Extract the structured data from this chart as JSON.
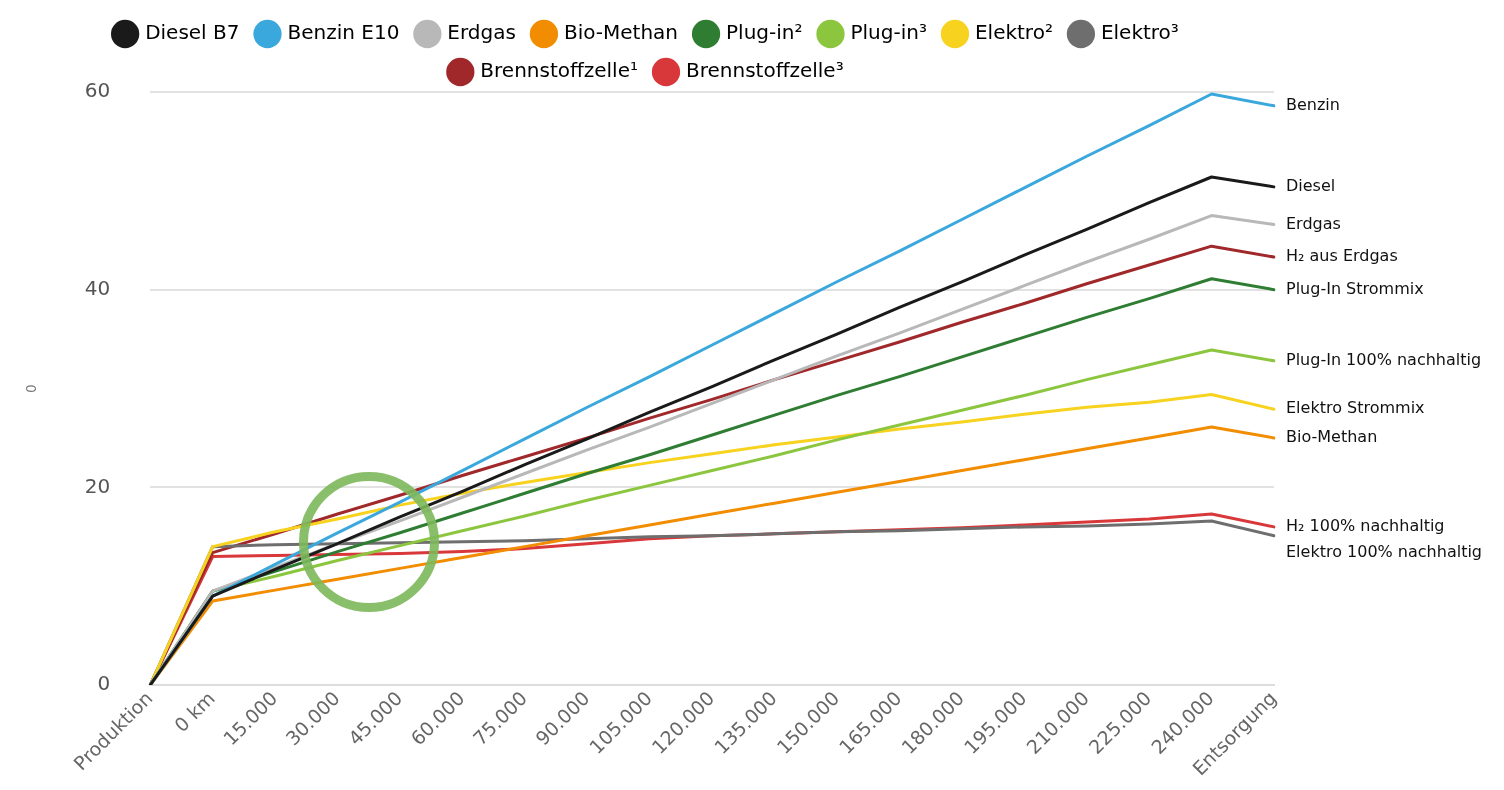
{
  "chart_data": {
    "type": "line",
    "ylabel": "0",
    "categories": [
      "Produktion",
      "0 km",
      "15.000",
      "30.000",
      "45.000",
      "60.000",
      "75.000",
      "90.000",
      "105.000",
      "120.000",
      "135.000",
      "150.000",
      "165.000",
      "180.000",
      "195.000",
      "210.000",
      "225.000",
      "240.000",
      "Entsorgung"
    ],
    "series": [
      {
        "name": "Diesel B7",
        "color": "#1a1a1a",
        "values": [
          0,
          9,
          11.7,
          14.3,
          17,
          19.6,
          22.3,
          24.9,
          27.6,
          30.2,
          32.9,
          35.5,
          38.2,
          40.8,
          43.5,
          46.1,
          48.8,
          51.4,
          50.4
        ]
      },
      {
        "name": "Benzin E10",
        "color": "#3aa8dc",
        "values": [
          0,
          9,
          12.2,
          15.4,
          18.5,
          21.7,
          24.9,
          28.1,
          31.2,
          34.4,
          37.6,
          40.8,
          43.9,
          47.1,
          50.3,
          53.5,
          56.6,
          59.8,
          58.6
        ]
      },
      {
        "name": "Erdgas",
        "color": "#b8b8b8",
        "values": [
          0,
          9.5,
          11.9,
          14.3,
          16.6,
          19,
          21.4,
          23.8,
          26.1,
          28.5,
          30.9,
          33.3,
          35.6,
          38,
          40.4,
          42.8,
          45.1,
          47.5,
          46.6
        ]
      },
      {
        "name": "Bio-Methan",
        "color": "#f28c00",
        "values": [
          0,
          8.5,
          9.6,
          10.7,
          11.8,
          12.9,
          14,
          15.1,
          16.2,
          17.3,
          18.4,
          19.5,
          20.6,
          21.7,
          22.8,
          23.9,
          25,
          26.1,
          25
        ]
      },
      {
        "name": "Plug-in²",
        "color": "#2e7d32",
        "values": [
          0,
          9.5,
          11.5,
          13.5,
          15.4,
          17.4,
          19.4,
          21.4,
          23.3,
          25.3,
          27.3,
          29.3,
          31.2,
          33.2,
          35.2,
          37.2,
          39.1,
          41.1,
          40
        ]
      },
      {
        "name": "Plug-in³",
        "color": "#8cc63f",
        "values": [
          0,
          9.5,
          11,
          12.6,
          14.1,
          15.6,
          17.1,
          18.7,
          20.2,
          21.7,
          23.2,
          24.8,
          26.3,
          27.8,
          29.3,
          30.9,
          32.4,
          33.9,
          32.8
        ]
      },
      {
        "name": "Elektro²",
        "color": "#f7d21e",
        "values": [
          0,
          14,
          15.5,
          16.8,
          18.2,
          19.4,
          20.5,
          21.5,
          22.5,
          23.4,
          24.3,
          25.1,
          25.9,
          26.6,
          27.4,
          28.1,
          28.6,
          29.4,
          27.9
        ]
      },
      {
        "name": "Elektro³",
        "color": "#6e6e6e",
        "values": [
          0,
          14,
          14.2,
          14.3,
          14.4,
          14.5,
          14.6,
          14.8,
          15,
          15.1,
          15.3,
          15.5,
          15.6,
          15.8,
          16,
          16.1,
          16.3,
          16.6,
          15.1
        ]
      },
      {
        "name": "Brennstoffzelle¹",
        "color": "#a0282a",
        "values": [
          0,
          13.4,
          15.3,
          17.3,
          19.2,
          21.2,
          23.1,
          25,
          27,
          28.9,
          30.9,
          32.8,
          34.7,
          36.7,
          38.6,
          40.6,
          42.5,
          44.4,
          43.3
        ]
      },
      {
        "name": "Brennstoffzelle³",
        "color": "#d9383a",
        "values": [
          0,
          13,
          13.1,
          13.2,
          13.3,
          13.5,
          13.8,
          14.3,
          14.8,
          15.1,
          15.3,
          15.5,
          15.7,
          15.9,
          16.2,
          16.5,
          16.8,
          17.3,
          16
        ]
      }
    ],
    "ylim": [
      0,
      60
    ],
    "yticks": [
      0,
      20,
      40,
      60
    ],
    "grid": "y",
    "legend": "top",
    "marker": "none",
    "line_style": "solid",
    "annotations": [
      {
        "text": "Benzin",
        "x": "Entsorgung",
        "y": 58.6
      },
      {
        "text": "Diesel",
        "x": "Entsorgung",
        "y": 50.4
      },
      {
        "text": "Erdgas",
        "x": "Entsorgung",
        "y": 46.6
      },
      {
        "text": "H₂ aus Erdgas",
        "x": "Entsorgung",
        "y": 43.3
      },
      {
        "text": "Plug-In Strommix",
        "x": "Entsorgung",
        "y": 40
      },
      {
        "text": "Plug-In 100% nachhaltig",
        "x": "Entsorgung",
        "y": 32.8
      },
      {
        "text": "Elektro Strommix",
        "x": "Entsorgung",
        "y": 27.9
      },
      {
        "text": "Bio-Methan",
        "x": "Entsorgung",
        "y": 25
      },
      {
        "text": "H₂ 100% nachhaltig",
        "x": "Entsorgung",
        "y": 16
      },
      {
        "text": "Elektro 100% nachhaltig",
        "x": "Entsorgung",
        "y": 15.1
      }
    ]
  }
}
